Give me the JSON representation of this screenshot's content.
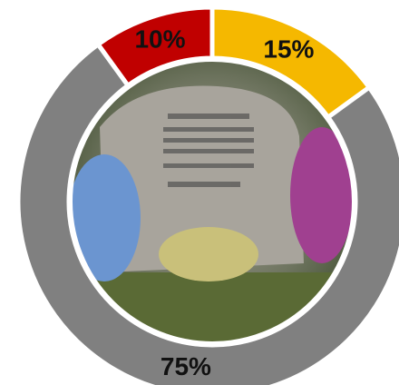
{
  "chart_data": {
    "type": "donut",
    "values": [
      15,
      75,
      10
    ],
    "value_labels": [
      "15%",
      "75%",
      "10%"
    ],
    "colors": [
      "#f5b800",
      "#808080",
      "#c00000"
    ]
  }
}
